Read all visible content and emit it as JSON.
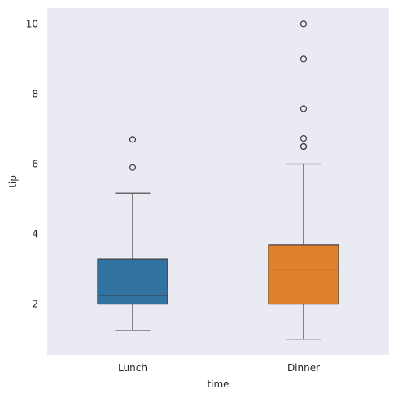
{
  "chart_data": {
    "type": "box",
    "xlabel": "time",
    "ylabel": "tip",
    "categories": [
      "Lunch",
      "Dinner"
    ],
    "yticks": [
      2,
      4,
      6,
      8,
      10
    ],
    "ylim": [
      0.55,
      10.45
    ],
    "grid": true,
    "boxes": [
      {
        "category": "Lunch",
        "color": "#3274a1",
        "whisker_low": 1.25,
        "q1": 2.0,
        "median": 2.25,
        "q3": 3.29,
        "whisker_high": 5.17,
        "outliers": [
          5.9,
          6.7
        ]
      },
      {
        "category": "Dinner",
        "color": "#e1812c",
        "whisker_low": 1.0,
        "q1": 2.0,
        "median": 3.0,
        "q3": 3.69,
        "whisker_high": 6.0,
        "outliers": [
          6.5,
          6.5,
          6.73,
          7.58,
          9.0,
          10.0
        ]
      }
    ],
    "colors": {
      "background": "#eaeaf2",
      "grid": "#ffffff",
      "line": "#3d3d3d"
    }
  }
}
